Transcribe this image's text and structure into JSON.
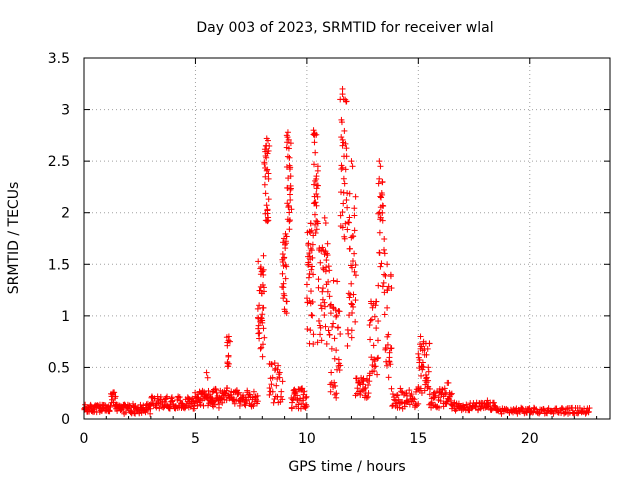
{
  "chart_data": {
    "type": "scatter",
    "title": "Day 003 of 2023, SRMTID for receiver wlal",
    "xlabel": "GPS time / hours",
    "ylabel": "SRMTID / TECUs",
    "xlim": [
      0,
      23.6
    ],
    "ylim": [
      0,
      3.5
    ],
    "xticks": [
      0,
      5,
      10,
      15,
      20
    ],
    "yticks": [
      0,
      0.5,
      1,
      1.5,
      2,
      2.5,
      3,
      3.5
    ],
    "xtick_labels": [
      "0",
      "5",
      "10",
      "15",
      "20"
    ],
    "ytick_labels": [
      "0",
      "0.5",
      "1",
      "1.5",
      "2",
      "2.5",
      "3",
      "3.5"
    ],
    "grid": true,
    "marker": "+",
    "color": "#ff0000",
    "series": [
      {
        "name": "SRMTID",
        "segments": [
          {
            "x0": 0.0,
            "x1": 1.2,
            "base": 0.1,
            "spread": 0.04,
            "n": 60
          },
          {
            "x0": 1.2,
            "x1": 1.4,
            "base": 0.2,
            "spread": 0.06,
            "n": 10
          },
          {
            "x0": 1.4,
            "x1": 3.0,
            "base": 0.1,
            "spread": 0.05,
            "n": 70
          },
          {
            "x0": 3.0,
            "x1": 5.0,
            "base": 0.16,
            "spread": 0.06,
            "n": 90
          },
          {
            "x0": 5.0,
            "x1": 5.8,
            "base": 0.2,
            "spread": 0.08,
            "n": 40
          },
          {
            "x0": 5.7,
            "x1": 6.4,
            "base": 0.2,
            "spread": 0.1,
            "n": 40
          },
          {
            "x0": 6.4,
            "x1": 6.5,
            "base": 0.5,
            "spread": 0.3,
            "n": 15
          },
          {
            "x0": 6.5,
            "x1": 7.8,
            "base": 0.2,
            "spread": 0.08,
            "n": 60
          },
          {
            "x0": 7.8,
            "x1": 8.1,
            "base": 1.1,
            "spread": 0.5,
            "n": 40
          },
          {
            "x0": 8.1,
            "x1": 8.3,
            "base": 2.3,
            "spread": 0.4,
            "n": 30
          },
          {
            "x0": 8.3,
            "x1": 8.9,
            "base": 0.35,
            "spread": 0.2,
            "n": 30
          },
          {
            "x0": 8.9,
            "x1": 9.1,
            "base": 1.4,
            "spread": 0.4,
            "n": 30
          },
          {
            "x0": 9.1,
            "x1": 9.3,
            "base": 2.3,
            "spread": 0.5,
            "n": 30
          },
          {
            "x0": 9.3,
            "x1": 10.0,
            "base": 0.2,
            "spread": 0.1,
            "n": 40
          },
          {
            "x0": 10.0,
            "x1": 10.3,
            "base": 1.3,
            "spread": 0.6,
            "n": 40
          },
          {
            "x0": 10.3,
            "x1": 10.5,
            "base": 2.3,
            "spread": 0.5,
            "n": 30
          },
          {
            "x0": 10.5,
            "x1": 11.0,
            "base": 1.2,
            "spread": 0.5,
            "n": 40
          },
          {
            "x0": 11.0,
            "x1": 11.5,
            "base": 0.8,
            "spread": 0.6,
            "n": 40
          },
          {
            "x0": 11.5,
            "x1": 11.8,
            "base": 2.4,
            "spread": 0.7,
            "n": 30
          },
          {
            "x0": 11.8,
            "x1": 12.2,
            "base": 1.5,
            "spread": 0.8,
            "n": 40
          },
          {
            "x0": 12.2,
            "x1": 12.8,
            "base": 0.3,
            "spread": 0.1,
            "n": 30
          },
          {
            "x0": 12.8,
            "x1": 13.2,
            "base": 0.8,
            "spread": 0.4,
            "n": 30
          },
          {
            "x0": 13.2,
            "x1": 13.5,
            "base": 1.8,
            "spread": 0.6,
            "n": 30
          },
          {
            "x0": 13.5,
            "x1": 13.8,
            "base": 0.9,
            "spread": 0.5,
            "n": 25
          },
          {
            "x0": 13.8,
            "x1": 15.0,
            "base": 0.2,
            "spread": 0.1,
            "n": 50
          },
          {
            "x0": 15.0,
            "x1": 15.5,
            "base": 0.5,
            "spread": 0.25,
            "n": 40
          },
          {
            "x0": 15.5,
            "x1": 16.5,
            "base": 0.2,
            "spread": 0.1,
            "n": 50
          },
          {
            "x0": 16.5,
            "x1": 18.5,
            "base": 0.12,
            "spread": 0.04,
            "n": 70
          },
          {
            "x0": 18.5,
            "x1": 22.7,
            "base": 0.08,
            "spread": 0.03,
            "n": 120
          }
        ],
        "points": [
          [
            11.6,
            3.2
          ],
          [
            11.6,
            3.15
          ],
          [
            11.65,
            3.1
          ],
          [
            11.55,
            2.9
          ],
          [
            11.6,
            2.65
          ],
          [
            10.3,
            2.8
          ],
          [
            10.35,
            2.75
          ],
          [
            9.15,
            2.78
          ],
          [
            9.1,
            2.75
          ],
          [
            8.2,
            2.72
          ],
          [
            8.18,
            2.65
          ],
          [
            8.15,
            2.55
          ],
          [
            13.25,
            2.5
          ],
          [
            13.3,
            2.45
          ],
          [
            12.0,
            2.5
          ],
          [
            12.05,
            2.45
          ],
          [
            10.8,
            1.95
          ],
          [
            10.85,
            1.9
          ],
          [
            13.6,
            1.5
          ],
          [
            15.1,
            0.8
          ],
          [
            6.5,
            0.8
          ],
          [
            6.55,
            0.75
          ],
          [
            5.5,
            0.45
          ],
          [
            5.55,
            0.4
          ],
          [
            1.3,
            0.25
          ],
          [
            16.3,
            0.35
          ],
          [
            16.35,
            0.35
          ],
          [
            18.1,
            0.18
          ]
        ]
      }
    ]
  }
}
